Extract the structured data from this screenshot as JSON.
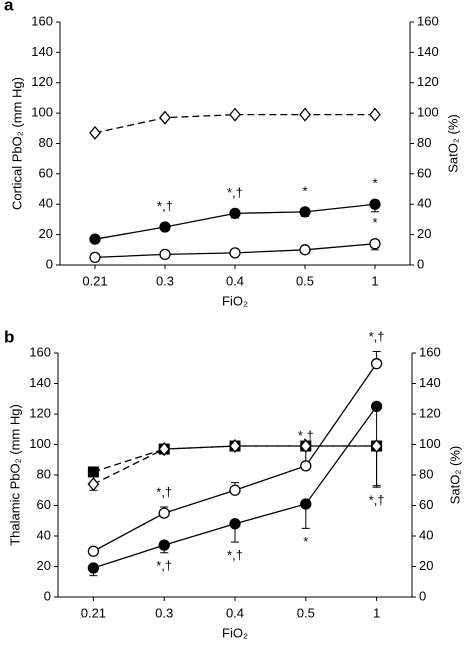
{
  "chart_data": [
    {
      "type": "line",
      "panel_label": "a",
      "ylabel": "Cortical PbO₂ (mm Hg)",
      "y2label": "SatO₂ (%)",
      "xlabel": "FiO₂",
      "categories": [
        "0.21",
        "0.3",
        "0.4",
        "0.5",
        "1"
      ],
      "ylim": [
        0,
        160
      ],
      "yticks": [
        0,
        20,
        40,
        60,
        80,
        100,
        120,
        140,
        160
      ],
      "y2lim": [
        0,
        160
      ],
      "y2ticks": [
        0,
        20,
        40,
        60,
        80,
        100,
        120,
        140,
        160
      ],
      "series": [
        {
          "color": "#000000",
          "marker": "circle-open",
          "dashed": false,
          "values": [
            5,
            7,
            8,
            10,
            14
          ],
          "errors": [
            1,
            1,
            1,
            2,
            4
          ],
          "error_direction": "down",
          "annotations_above": [
            null,
            null,
            null,
            null,
            "*"
          ],
          "annotations_below": [
            null,
            null,
            null,
            null,
            null
          ]
        },
        {
          "color": "#000000",
          "marker": "circle-filled",
          "dashed": false,
          "values": [
            17,
            25,
            34,
            35,
            40
          ],
          "errors": [
            2,
            2,
            3,
            3,
            5
          ],
          "error_direction": "down",
          "annotations_above": [
            null,
            "*,†",
            "*,†",
            "*",
            "*"
          ],
          "annotations_below": [
            null,
            null,
            null,
            null,
            null
          ]
        },
        {
          "color": "#000000",
          "marker": "diamond-open",
          "dashed": true,
          "axis": "y2",
          "values": [
            87,
            97,
            99,
            99,
            99
          ],
          "errors": [
            null,
            null,
            null,
            null,
            null
          ],
          "error_direction": "down",
          "annotations_above": [
            null,
            null,
            null,
            null,
            null
          ],
          "annotations_below": [
            null,
            null,
            null,
            null,
            null
          ]
        }
      ]
    },
    {
      "type": "line",
      "panel_label": "b",
      "ylabel": "Thalamic PbO₂ (mm Hg)",
      "y2label": "SatO₂ (%)",
      "xlabel": "FiO₂",
      "categories": [
        "0.21",
        "0.3",
        "0.4",
        "0.5",
        "1"
      ],
      "ylim": [
        0,
        160
      ],
      "yticks": [
        0,
        20,
        40,
        60,
        80,
        100,
        120,
        140,
        160
      ],
      "y2lim": [
        0,
        160
      ],
      "y2ticks": [
        0,
        20,
        40,
        60,
        80,
        100,
        120,
        140,
        160
      ],
      "series": [
        {
          "color": "#000000",
          "marker": "circle-open",
          "dashed": false,
          "values": [
            30,
            55,
            70,
            86,
            153
          ],
          "errors": [
            2,
            4,
            5,
            10,
            8
          ],
          "error_direction": "up",
          "annotations_above": [
            null,
            "*,†",
            null,
            "*,†",
            "*,†"
          ],
          "annotations_below": [
            null,
            null,
            null,
            null,
            null
          ]
        },
        {
          "color": "#000000",
          "marker": "circle-filled",
          "dashed": false,
          "values": [
            19,
            34,
            48,
            61,
            125
          ],
          "errors": [
            5,
            5,
            12,
            16,
            53
          ],
          "error_direction": "down",
          "annotations_above": [
            null,
            null,
            null,
            null,
            null
          ],
          "annotations_below": [
            null,
            "*,†",
            "*,†",
            "*",
            "*,†"
          ]
        },
        {
          "color": "#000000",
          "marker": "square-filled",
          "dashed": true,
          "axis": "y2",
          "values": [
            82,
            97,
            99,
            99,
            99
          ],
          "errors": [
            null,
            null,
            null,
            null,
            null
          ],
          "error_direction": "down",
          "annotations_above": [
            null,
            null,
            null,
            null,
            null
          ],
          "annotations_below": [
            null,
            null,
            null,
            null,
            null
          ]
        },
        {
          "color": "#000000",
          "marker": "diamond-open",
          "dashed": true,
          "axis": "y2",
          "values": [
            74,
            97,
            99,
            99,
            99
          ],
          "errors": [
            4,
            null,
            null,
            null,
            26
          ],
          "error_direction": "down",
          "annotations_above": [
            null,
            null,
            null,
            null,
            null
          ],
          "annotations_below": [
            null,
            null,
            null,
            null,
            null
          ]
        }
      ]
    }
  ]
}
